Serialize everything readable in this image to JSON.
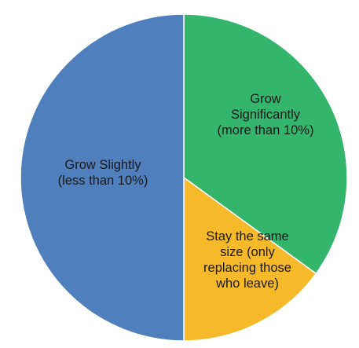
{
  "chart_data": {
    "type": "pie",
    "title": "",
    "slices": [
      {
        "label_lines": [
          "Grow",
          "Significantly",
          "(more than 10%)"
        ],
        "value": 35,
        "color": "#33b56c"
      },
      {
        "label_lines": [
          "Stay the same",
          "size (only",
          "replacing those",
          "who leave)"
        ],
        "value": 15,
        "color": "#f5b92a"
      },
      {
        "label_lines": [
          "Grow Slightly",
          "(less than 10%)"
        ],
        "value": 50,
        "color": "#4f7fbc"
      }
    ],
    "start_angle": "12 o'clock",
    "direction": "clockwise",
    "legend": "none",
    "slice_border_color": "#ffffff"
  }
}
